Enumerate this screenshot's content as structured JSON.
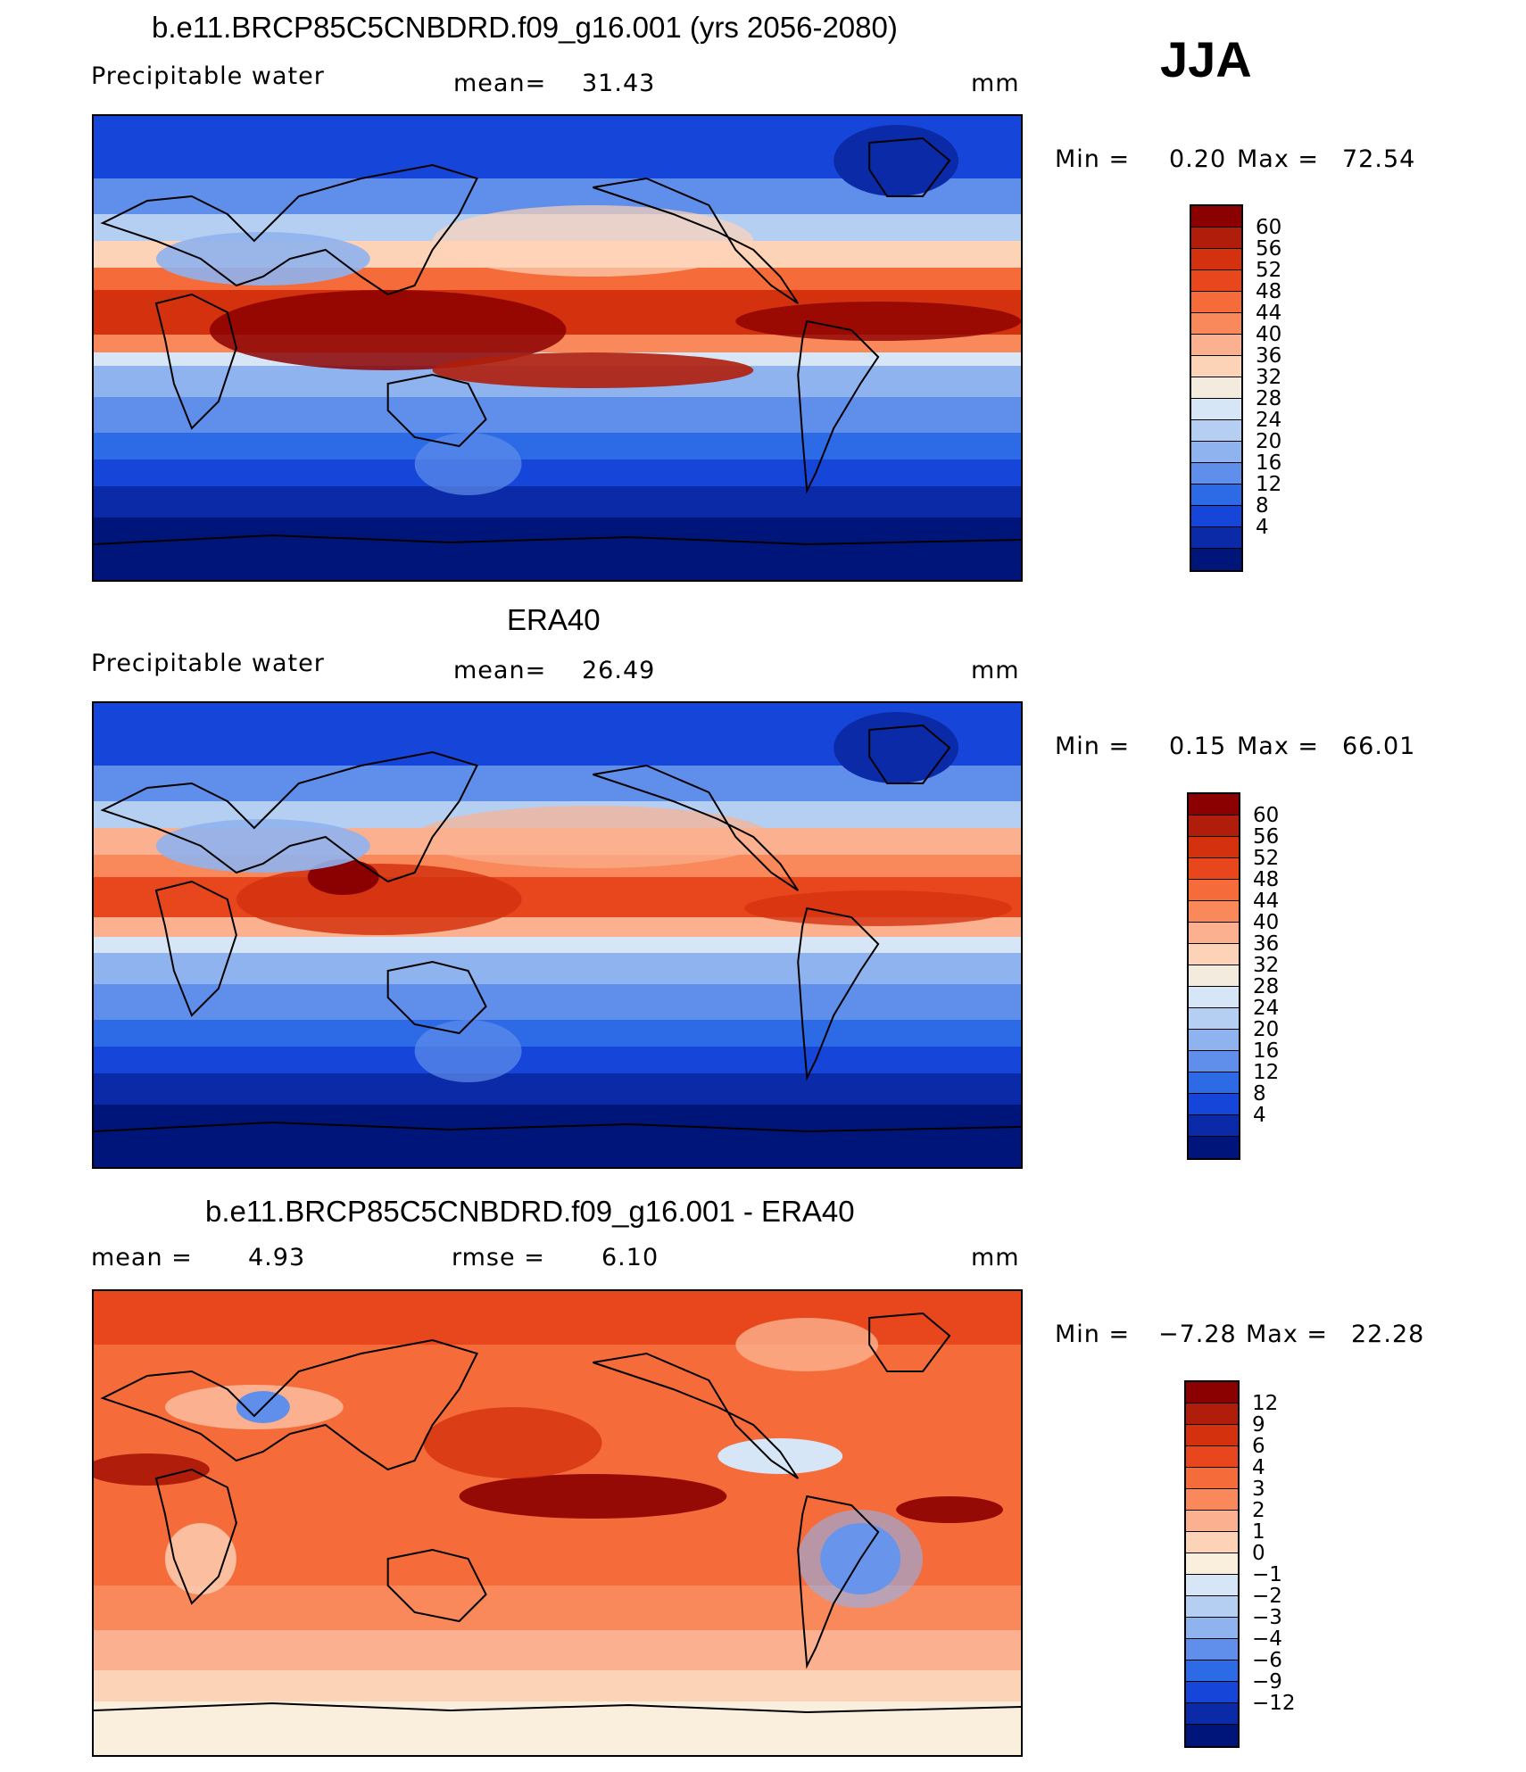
{
  "season": "JJA",
  "units": "mm",
  "panels": [
    {
      "id": "model",
      "title": "b.e11.BRCP85C5CNBDRD.f09_g16.001 (yrs 2056-2080)",
      "variable": "Precipitable water",
      "stat1_label": "mean=",
      "stat1_value": "31.43",
      "units": "mm",
      "min_label": "Min =",
      "min_value": "0.20",
      "max_label": "Max =",
      "max_value": "72.54",
      "levels": [
        "60",
        "56",
        "52",
        "48",
        "44",
        "40",
        "36",
        "32",
        "28",
        "24",
        "20",
        "16",
        "12",
        "8",
        "4"
      ],
      "colors": [
        "#8b0000",
        "#b01e0b",
        "#d4320f",
        "#e8461c",
        "#f56b3a",
        "#f9885a",
        "#fbb18f",
        "#fdd3b8",
        "#f3ecde",
        "#d6e6f7",
        "#b5cff3",
        "#8fb3ee",
        "#5f8fea",
        "#2d6ae6",
        "#1646d9",
        "#0a2aa8",
        "#00157a"
      ]
    },
    {
      "id": "obs",
      "title": "ERA40",
      "variable": "Precipitable water",
      "stat1_label": "mean=",
      "stat1_value": "26.49",
      "units": "mm",
      "min_label": "Min =",
      "min_value": "0.15",
      "max_label": "Max =",
      "max_value": "66.01",
      "levels": [
        "60",
        "56",
        "52",
        "48",
        "44",
        "40",
        "36",
        "32",
        "28",
        "24",
        "20",
        "16",
        "12",
        "8",
        "4"
      ],
      "colors": [
        "#8b0000",
        "#b01e0b",
        "#d4320f",
        "#e8461c",
        "#f56b3a",
        "#f9885a",
        "#fbb18f",
        "#fdd3b8",
        "#f3ecde",
        "#d6e6f7",
        "#b5cff3",
        "#8fb3ee",
        "#5f8fea",
        "#2d6ae6",
        "#1646d9",
        "#0a2aa8",
        "#00157a"
      ]
    },
    {
      "id": "diff",
      "title": "b.e11.BRCP85C5CNBDRD.f09_g16.001 - ERA40",
      "stat1_label": "mean =",
      "stat1_value": "4.93",
      "stat2_label": "rmse =",
      "stat2_value": "6.10",
      "units": "mm",
      "min_label": "Min =",
      "min_value": "−7.28",
      "max_label": "Max =",
      "max_value": "22.28",
      "levels": [
        "12",
        "9",
        "6",
        "4",
        "3",
        "2",
        "1",
        "0",
        "−1",
        "−2",
        "−3",
        "−4",
        "−6",
        "−9",
        "−12"
      ],
      "colors": [
        "#8b0000",
        "#b01e0b",
        "#d4320f",
        "#e8461c",
        "#f56b3a",
        "#f9885a",
        "#fbb18f",
        "#fdd3b8",
        "#faeedd",
        "#d6e6f7",
        "#b5cff3",
        "#8fb3ee",
        "#5f8fea",
        "#2d6ae6",
        "#1646d9",
        "#0a2aa8",
        "#00157a"
      ]
    }
  ]
}
